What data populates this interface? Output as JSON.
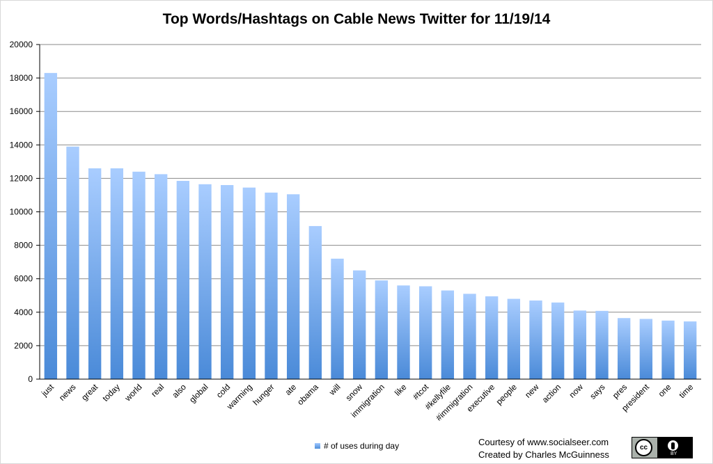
{
  "chart_data": {
    "type": "bar",
    "title": "Top Words/Hashtags on Cable News Twitter for 11/19/14",
    "xlabel": "",
    "ylabel": "",
    "ylim": [
      0,
      20000
    ],
    "yticks": [
      0,
      2000,
      4000,
      6000,
      8000,
      10000,
      12000,
      14000,
      16000,
      18000,
      20000
    ],
    "grid": true,
    "legend_position": "bottom",
    "bar_color": "#5b9bea",
    "categories": [
      "just",
      "news",
      "great",
      "today",
      "world",
      "real",
      "also",
      "global",
      "cold",
      "warming",
      "hunger",
      "ate",
      "obama",
      "will",
      "snow",
      "immigration",
      "like",
      "#tcot",
      "#kellyfile",
      "#immigration",
      "executive",
      "people",
      "new",
      "action",
      "now",
      "says",
      "pres",
      "president",
      "one",
      "time"
    ],
    "series": [
      {
        "name": "# of uses during day",
        "values": [
          18300,
          13900,
          12600,
          12600,
          12400,
          12250,
          11850,
          11650,
          11600,
          11450,
          11150,
          11050,
          9150,
          7200,
          6500,
          5900,
          5600,
          5550,
          5300,
          5100,
          4950,
          4800,
          4700,
          4580,
          4100,
          4080,
          3650,
          3600,
          3500,
          3450
        ]
      }
    ]
  },
  "footer": {
    "credit_line_1": "Courtesy of www.socialseer.com",
    "credit_line_2": "Created by Charles McGuinness",
    "license_badge_text": "BY",
    "license_badge_cc": "cc"
  }
}
